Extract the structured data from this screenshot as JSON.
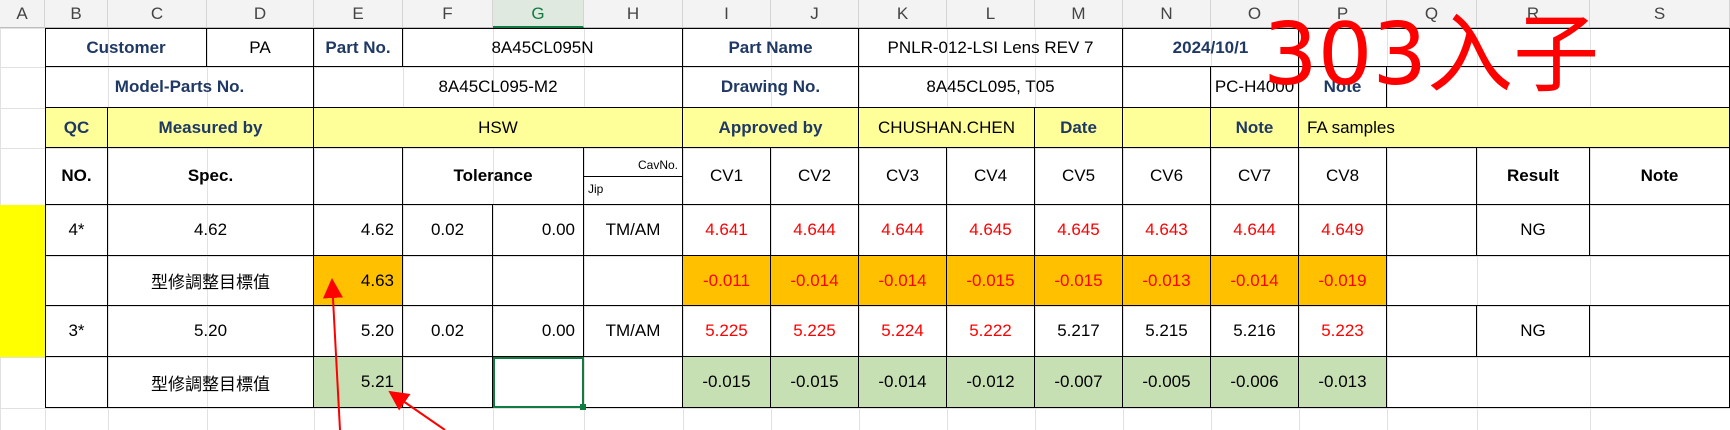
{
  "column_headers": [
    "A",
    "B",
    "C",
    "D",
    "E",
    "F",
    "G",
    "H",
    "I",
    "J",
    "K",
    "L",
    "M",
    "N",
    "O",
    "P",
    "Q",
    "R",
    "S"
  ],
  "selected_column": "G",
  "header": {
    "customer_label": "Customer",
    "customer_value": "PA",
    "part_no_label": "Part No.",
    "part_no_value": "8A45CL095N",
    "part_name_label": "Part Name",
    "part_name_value": "PNLR-012-LSI Lens REV 7",
    "date_value": "2024/10/1",
    "model_label": "Model-Parts No.",
    "model_value": "8A45CL095-M2",
    "drawing_label": "Drawing No.",
    "drawing_value": "8A45CL095, T05",
    "material_value": "PC-H4000",
    "note_label": "Note",
    "qc_label": "QC",
    "measured_label": "Measured  by",
    "measured_value": "HSW",
    "approved_label": "Approved   by",
    "approved_value": "CHUSHAN.CHEN",
    "date_label": "Date",
    "note2_label": "Note",
    "note2_value": "FA samples"
  },
  "table_header": {
    "no": "NO.",
    "spec": "Spec.",
    "tolerance": "Tolerance",
    "cavno": "CavNo.",
    "jip": "Jip",
    "cavities": [
      "CV1",
      "CV2",
      "CV3",
      "CV4",
      "CV5",
      "CV6",
      "CV7",
      "CV8"
    ],
    "result": "Result",
    "note": "Note"
  },
  "rows": [
    {
      "no": "4*",
      "spec": "4.62",
      "nominal": "4.62",
      "tol_plus": "0.02",
      "tol_minus": "0.00",
      "method": "TM/AM",
      "values": [
        "4.641",
        "4.644",
        "4.644",
        "4.645",
        "4.645",
        "4.643",
        "4.644",
        "4.649"
      ],
      "value_colors": [
        "#ff0000",
        "#ff0000",
        "#ff0000",
        "#ff0000",
        "#ff0000",
        "#ff0000",
        "#ff0000",
        "#ff0000"
      ],
      "result": "NG"
    },
    {
      "label": "型修調整目標值",
      "target": "4.63",
      "deltas": [
        "-0.011",
        "-0.014",
        "-0.014",
        "-0.015",
        "-0.015",
        "-0.013",
        "-0.014",
        "-0.019"
      ],
      "delta_color": "#ff0000",
      "fill": "#ffc000"
    },
    {
      "no": "3*",
      "spec": "5.20",
      "nominal": "5.20",
      "tol_plus": "0.02",
      "tol_minus": "0.00",
      "method": "TM/AM",
      "values": [
        "5.225",
        "5.225",
        "5.224",
        "5.222",
        "5.217",
        "5.215",
        "5.216",
        "5.223"
      ],
      "value_colors": [
        "#ff0000",
        "#ff0000",
        "#ff0000",
        "#ff0000",
        "#000000",
        "#000000",
        "#000000",
        "#ff0000"
      ],
      "result": "NG"
    },
    {
      "label": "型修調整目標值",
      "target": "5.21",
      "deltas": [
        "-0.015",
        "-0.015",
        "-0.014",
        "-0.012",
        "-0.007",
        "-0.005",
        "-0.006",
        "-0.013"
      ],
      "delta_color": "#000000",
      "fill": "#c6e0b4"
    }
  ],
  "annotation_text": "303入子",
  "colors": {
    "accent_green": "#107c41",
    "navy": "#1f3864",
    "yellow": "#ffff99",
    "orange": "#ffc000",
    "light_green": "#c6e0b4",
    "red": "#ff0000"
  }
}
